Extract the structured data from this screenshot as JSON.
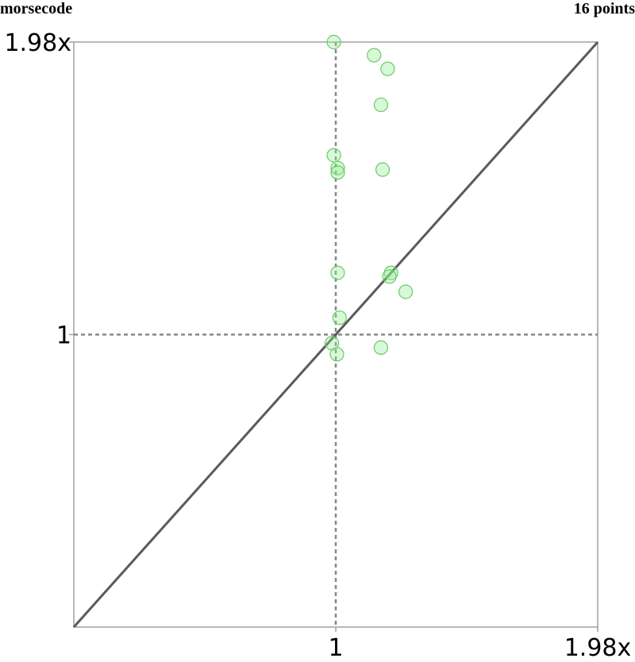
{
  "header": {
    "left_label": "morsecode",
    "right_label": "16 points"
  },
  "chart_data": {
    "type": "scatter",
    "title": "",
    "xlabel": "",
    "ylabel": "",
    "x_scale": "log",
    "y_scale": "log",
    "xlim": [
      0.505,
      1.98
    ],
    "ylim": [
      0.505,
      1.98
    ],
    "x_ticks": [
      {
        "value": 1,
        "label": "1"
      },
      {
        "value": 1.98,
        "label": "1.98x"
      }
    ],
    "y_ticks": [
      {
        "value": 1,
        "label": "1"
      },
      {
        "value": 1.98,
        "label": "1.98x"
      }
    ],
    "reference_lines": {
      "diagonal": true,
      "x_equals_one": true,
      "y_equals_one": true
    },
    "point_color": "#90ee90",
    "points": [
      {
        "x": 0.995,
        "y": 1.98
      },
      {
        "x": 1.105,
        "y": 1.92
      },
      {
        "x": 1.145,
        "y": 1.86
      },
      {
        "x": 1.125,
        "y": 1.71
      },
      {
        "x": 0.995,
        "y": 1.52
      },
      {
        "x": 1.005,
        "y": 1.475
      },
      {
        "x": 1.005,
        "y": 1.46
      },
      {
        "x": 1.13,
        "y": 1.47
      },
      {
        "x": 1.005,
        "y": 1.155
      },
      {
        "x": 1.155,
        "y": 1.155
      },
      {
        "x": 1.15,
        "y": 1.145
      },
      {
        "x": 1.2,
        "y": 1.105
      },
      {
        "x": 1.01,
        "y": 1.04
      },
      {
        "x": 0.99,
        "y": 0.98
      },
      {
        "x": 1.125,
        "y": 0.97
      },
      {
        "x": 1.003,
        "y": 0.955
      }
    ]
  }
}
